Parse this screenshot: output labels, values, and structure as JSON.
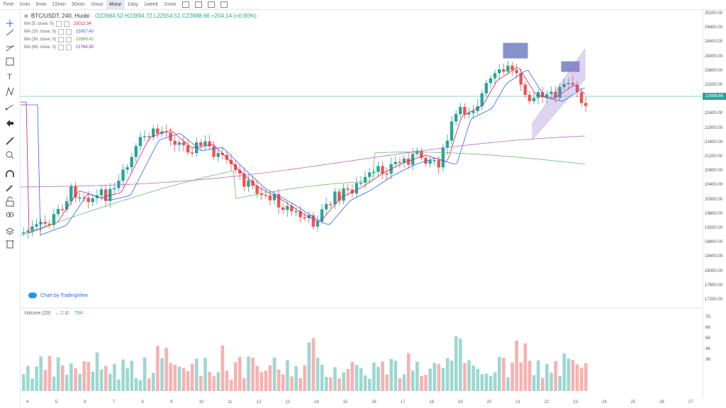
{
  "toolbar": {
    "timeframes": [
      "Time",
      "1min",
      "5min",
      "15min",
      "30min",
      "1hour",
      "4hour",
      "1day",
      "1week",
      "1mon"
    ],
    "active_index": 6
  },
  "legend": {
    "title": "BTC/USDT, 240, Huobi",
    "ohlc": {
      "o": "O22684.52",
      "h": "H22894.72",
      "l": "L22554.51",
      "c": "C22888.66",
      "change": "+204.14 (+0.90%)"
    },
    "mas": [
      {
        "label": "MA (5, close, 0)",
        "value": "23012.34",
        "color": "#d81b60"
      },
      {
        "label": "MA (10, close, 0)",
        "value": "23007.40",
        "color": "#2962ff"
      },
      {
        "label": "MA (30, close, 0)",
        "value": "22889.42",
        "color": "#43a047"
      },
      {
        "label": "MA (60, close, 0)",
        "value": "21764.90",
        "color": "#8e24aa"
      }
    ]
  },
  "volume_legend": {
    "label": "Volume (20)",
    "value": "794"
  },
  "watermark": "Chart by TradingView",
  "price_axis": [
    "25200.00",
    "24800.00",
    "24400.00",
    "24000.00",
    "23600.00",
    "23200.00",
    "22800.00",
    "22400.00",
    "22000.00",
    "21600.00",
    "21200.00",
    "20800.00",
    "20400.00",
    "20000.00",
    "19600.00",
    "19200.00",
    "18800.00",
    "18400.00",
    "18000.00",
    "17600.00",
    "17200.00"
  ],
  "current_price": "22888.66",
  "volume_axis": [
    "7K",
    "6K",
    "5K",
    "4K",
    "3K"
  ],
  "date_axis": [
    "4",
    "5",
    "6",
    "7",
    "8",
    "9",
    "10",
    "11",
    "12",
    "13",
    "14",
    "15",
    "16",
    "17",
    "18",
    "19",
    "20",
    "21",
    "22",
    "23",
    "24",
    "25",
    "26",
    "27"
  ],
  "colors": {
    "up": "#26a69a",
    "down": "#ef5350"
  }
}
